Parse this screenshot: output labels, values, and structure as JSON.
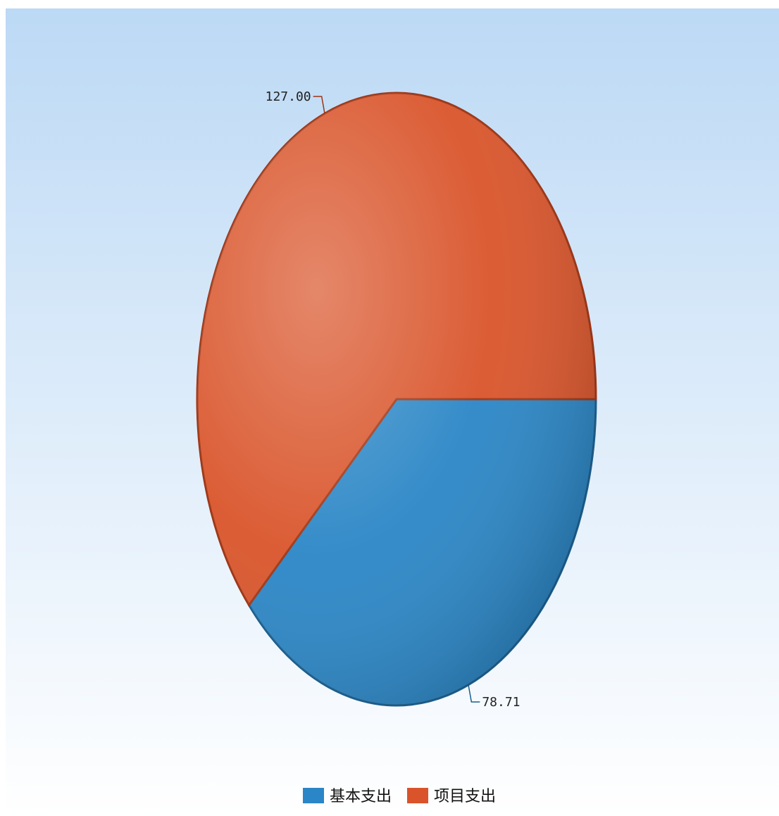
{
  "chart_data": {
    "type": "pie",
    "title": "",
    "slices": [
      {
        "label": "基本支出",
        "value": 78.71,
        "value_label": "78.71",
        "color": "#2a86c6",
        "edge_color": "#1a5d8c"
      },
      {
        "label": "项目支出",
        "value": 127.0,
        "value_label": "127.00",
        "color": "#d9542a",
        "edge_color": "#9c3414"
      }
    ],
    "legend": {
      "position": "bottom",
      "items": [
        "基本支出",
        "项目支出"
      ]
    },
    "background": {
      "top": "#bcd9f5",
      "bottom": "#ffffff"
    }
  }
}
